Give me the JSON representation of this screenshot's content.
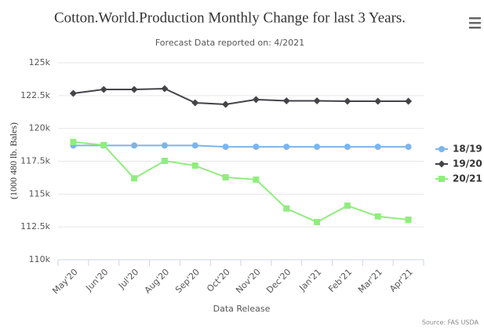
{
  "chart_data": {
    "type": "line",
    "title": "Cotton.World.Production Monthly Change for last 3 Years.",
    "subtitle": "Forecast Data reported on: 4/2021",
    "x_label": "Data Release",
    "y_label": "(1000 480 lb. Bales)",
    "source": "Source: FAS USDA",
    "categories": [
      "May'20",
      "Jun'20",
      "Jul'20",
      "Aug'20",
      "Sep'20",
      "Oct'20",
      "Nov'20",
      "Dec'20",
      "Jan'21",
      "Feb'21",
      "Mar'21",
      "Apr'21"
    ],
    "series": [
      {
        "name": "18/19",
        "color": "#7cb5ec",
        "marker": "circle",
        "values": [
          118700,
          118700,
          118700,
          118700,
          118700,
          118600,
          118600,
          118600,
          118600,
          118600,
          118600,
          118600
        ]
      },
      {
        "name": "19/20",
        "color": "#434348",
        "marker": "diamond",
        "values": [
          122670,
          122970,
          122970,
          123030,
          121950,
          121830,
          122200,
          122100,
          122100,
          122070,
          122070,
          122070
        ]
      },
      {
        "name": "20/21",
        "color": "#90ed7d",
        "marker": "square",
        "values": [
          118970,
          118730,
          116200,
          117530,
          117170,
          116280,
          116100,
          113900,
          112870,
          114120,
          113300,
          113050
        ]
      }
    ],
    "ylim": [
      110000,
      125000
    ],
    "yticks": [
      {
        "value": 110000,
        "label": "110k"
      },
      {
        "value": 112500,
        "label": "112.5k"
      },
      {
        "value": 115000,
        "label": "115k"
      },
      {
        "value": 117500,
        "label": "117.5k"
      },
      {
        "value": 120000,
        "label": "120k"
      },
      {
        "value": 122500,
        "label": "122.5k"
      },
      {
        "value": 125000,
        "label": "125k"
      }
    ],
    "grid": true,
    "legend": "right"
  }
}
